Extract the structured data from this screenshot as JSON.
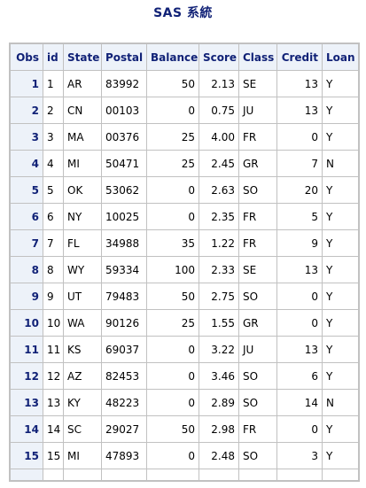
{
  "title": "SAS 系統",
  "columns": [
    "Obs",
    "id",
    "State",
    "Postal",
    "Balance",
    "Score",
    "Class",
    "Credit",
    "Loan"
  ],
  "rows": [
    [
      "1",
      "1",
      "AR",
      "83992",
      "50",
      "2.13",
      "SE",
      "13",
      "Y"
    ],
    [
      "2",
      "2",
      "CN",
      "00103",
      "0",
      "0.75",
      "JU",
      "13",
      "Y"
    ],
    [
      "3",
      "3",
      "MA",
      "00376",
      "25",
      "4.00",
      "FR",
      "0",
      "Y"
    ],
    [
      "4",
      "4",
      "MI",
      "50471",
      "25",
      "2.45",
      "GR",
      "7",
      "N"
    ],
    [
      "5",
      "5",
      "OK",
      "53062",
      "0",
      "2.63",
      "SO",
      "20",
      "Y"
    ],
    [
      "6",
      "6",
      "NY",
      "10025",
      "0",
      "2.35",
      "FR",
      "5",
      "Y"
    ],
    [
      "7",
      "7",
      "FL",
      "34988",
      "35",
      "1.22",
      "FR",
      "9",
      "Y"
    ],
    [
      "8",
      "8",
      "WY",
      "59334",
      "100",
      "2.33",
      "SE",
      "13",
      "Y"
    ],
    [
      "9",
      "9",
      "UT",
      "79483",
      "50",
      "2.75",
      "SO",
      "0",
      "Y"
    ],
    [
      "10",
      "10",
      "WA",
      "90126",
      "25",
      "1.55",
      "GR",
      "0",
      "Y"
    ],
    [
      "11",
      "11",
      "KS",
      "69037",
      "0",
      "3.22",
      "JU",
      "13",
      "Y"
    ],
    [
      "12",
      "12",
      "AZ",
      "82453",
      "0",
      "3.46",
      "SO",
      "6",
      "Y"
    ],
    [
      "13",
      "13",
      "KY",
      "48223",
      "0",
      "2.89",
      "SO",
      "14",
      "N"
    ],
    [
      "14",
      "14",
      "SC",
      "29027",
      "50",
      "2.98",
      "FR",
      "0",
      "Y"
    ],
    [
      "15",
      "15",
      "MI",
      "47893",
      "0",
      "2.48",
      "SO",
      "3",
      "Y"
    ]
  ]
}
